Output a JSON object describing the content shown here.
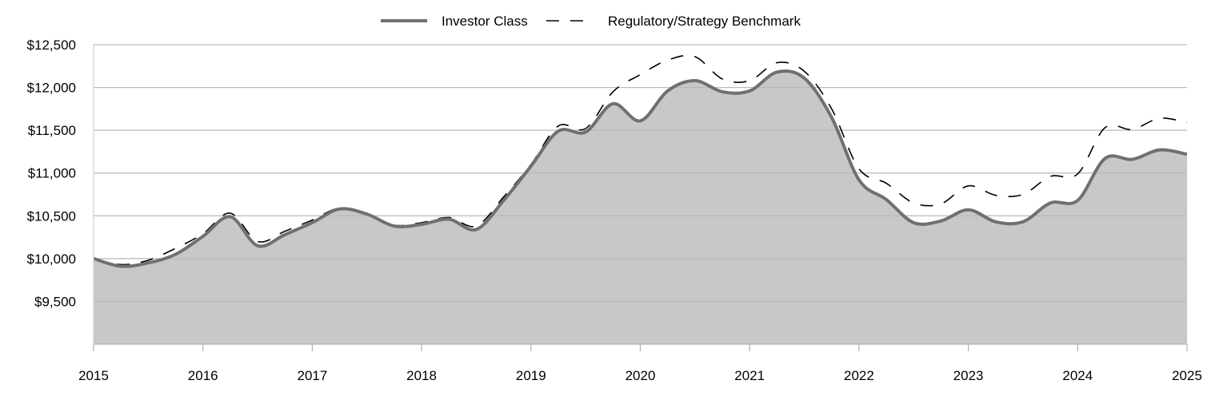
{
  "chart_data": {
    "type": "area",
    "title": "",
    "xlabel": "",
    "ylabel": "",
    "x_ticks": [
      "2015",
      "2016",
      "2017",
      "2018",
      "2019",
      "2020",
      "2021",
      "2022",
      "2023",
      "2024",
      "2025"
    ],
    "y_ticks": [
      "$9,500",
      "$10,000",
      "$10,500",
      "$11,000",
      "$11,500",
      "$12,000",
      "$12,500"
    ],
    "y_tick_values": [
      9500,
      10000,
      10500,
      11000,
      11500,
      12000,
      12500
    ],
    "xlim": [
      2015,
      2025
    ],
    "ylim": [
      9000,
      12500
    ],
    "grid": true,
    "legend_position": "top-center",
    "series": [
      {
        "name": "Investor Class",
        "style": "solid-area",
        "color": "#707070",
        "fill": "#c8c8c8",
        "x": [
          2015.0,
          2015.25,
          2015.5,
          2015.75,
          2016.0,
          2016.25,
          2016.5,
          2016.75,
          2017.0,
          2017.25,
          2017.5,
          2017.75,
          2018.0,
          2018.25,
          2018.5,
          2018.75,
          2019.0,
          2019.25,
          2019.5,
          2019.75,
          2020.0,
          2020.25,
          2020.5,
          2020.75,
          2021.0,
          2021.25,
          2021.5,
          2021.75,
          2022.0,
          2022.25,
          2022.5,
          2022.75,
          2023.0,
          2023.25,
          2023.5,
          2023.75,
          2024.0,
          2024.25,
          2024.5,
          2024.75,
          2025.0
        ],
        "values": [
          10000,
          9910,
          9950,
          10050,
          10260,
          10490,
          10150,
          10280,
          10420,
          10580,
          10520,
          10380,
          10400,
          10460,
          10340,
          10680,
          11080,
          11490,
          11480,
          11810,
          11610,
          11960,
          12080,
          11950,
          11960,
          12180,
          12110,
          11650,
          10920,
          10690,
          10420,
          10440,
          10570,
          10430,
          10430,
          10650,
          10680,
          11170,
          11160,
          11270,
          11220
        ]
      },
      {
        "name": "Regulatory/Strategy Benchmark",
        "style": "dashed",
        "color": "#000000",
        "x": [
          2015.0,
          2015.25,
          2015.5,
          2015.75,
          2016.0,
          2016.25,
          2016.5,
          2016.75,
          2017.0,
          2017.25,
          2017.5,
          2017.75,
          2018.0,
          2018.25,
          2018.5,
          2018.75,
          2019.0,
          2019.25,
          2019.5,
          2019.75,
          2020.0,
          2020.25,
          2020.5,
          2020.75,
          2021.0,
          2021.25,
          2021.5,
          2021.75,
          2022.0,
          2022.25,
          2022.5,
          2022.75,
          2023.0,
          2023.25,
          2023.5,
          2023.75,
          2024.0,
          2024.25,
          2024.5,
          2024.75,
          2025.0
        ],
        "values": [
          10000,
          9930,
          9980,
          10120,
          10290,
          10530,
          10200,
          10320,
          10450,
          10590,
          10510,
          10390,
          10420,
          10480,
          10380,
          10720,
          11100,
          11550,
          11520,
          11950,
          12150,
          12320,
          12360,
          12100,
          12080,
          12290,
          12190,
          11750,
          11050,
          10880,
          10650,
          10640,
          10850,
          10740,
          10750,
          10960,
          10990,
          11530,
          11510,
          11640,
          11590
        ]
      }
    ]
  }
}
